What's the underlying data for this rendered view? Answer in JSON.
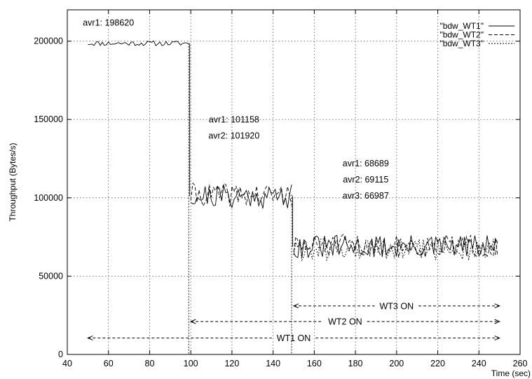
{
  "chart_data": {
    "type": "line",
    "title": "",
    "xlabel": "Time (sec)",
    "ylabel": "Throughput (Bytes/s)",
    "xlim": [
      40,
      260
    ],
    "ylim": [
      0,
      220000
    ],
    "x_ticks": [
      40,
      60,
      80,
      100,
      120,
      140,
      160,
      180,
      200,
      220,
      240,
      260
    ],
    "y_ticks": [
      0,
      50000,
      100000,
      150000,
      200000
    ],
    "grid": true,
    "legend_position": "top-right",
    "series": [
      {
        "name": "\"bdw_WT1\"",
        "dash": "solid",
        "segments": [
          {
            "x_start": 50,
            "x_end": 99,
            "base": 198620,
            "amp": 1600,
            "seed": 11
          },
          {
            "x_start": 100,
            "x_end": 149,
            "base": 101158,
            "amp": 8000,
            "seed": 21
          },
          {
            "x_start": 150,
            "x_end": 249,
            "base": 68689,
            "amp": 7500,
            "seed": 31
          }
        ]
      },
      {
        "name": "\"bdw_WT2\"",
        "dash": "dashed",
        "segments": [
          {
            "x_start": 100,
            "x_end": 149,
            "base": 101920,
            "amp": 7500,
            "seed": 41
          },
          {
            "x_start": 150,
            "x_end": 249,
            "base": 69115,
            "amp": 7500,
            "seed": 51
          }
        ]
      },
      {
        "name": "\"bdw_WT3\"",
        "dash": "dotted",
        "segments": [
          {
            "x_start": 150,
            "x_end": 249,
            "base": 66987,
            "amp": 7500,
            "seed": 61
          }
        ]
      }
    ],
    "annotations": [
      {
        "lines": [
          "avr1: 198620"
        ],
        "x": 60,
        "y": 210000
      },
      {
        "lines": [
          "avr1: 101158",
          "avr2: 101920"
        ],
        "x": 121,
        "y": 148000
      },
      {
        "lines": [
          "avr1: 68689",
          "avr2: 69115",
          "avr3: 66987"
        ],
        "x": 185,
        "y": 120000
      }
    ],
    "spans": [
      {
        "label": "WT3 ON",
        "x_start": 150,
        "x_end": 250,
        "y": 31000
      },
      {
        "label": "WT2 ON",
        "x_start": 100,
        "x_end": 250,
        "y": 21000
      },
      {
        "label": "WT1 ON",
        "x_start": 50,
        "x_end": 250,
        "y": 10500
      }
    ],
    "transitions": [
      {
        "x": 99,
        "from": 198620,
        "to": 0,
        "dash": "dotted"
      },
      {
        "x": 99.5,
        "from": 198620,
        "to": 101158,
        "dash": "solid"
      },
      {
        "x": 149,
        "from": 101920,
        "to": 0,
        "dash": "dotted"
      },
      {
        "x": 149.5,
        "from": 101158,
        "to": 68689,
        "dash": "solid"
      }
    ]
  }
}
